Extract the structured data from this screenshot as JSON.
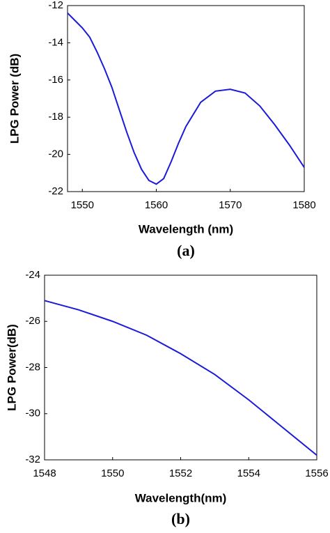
{
  "chart_data": [
    {
      "type": "line",
      "caption": "(a)",
      "x_label": "Wavelength (nm)",
      "y_label": "LPG Power (dB)",
      "xlim": [
        1548,
        1580
      ],
      "xticks": [
        1550,
        1560,
        1570,
        1580
      ],
      "ylim": [
        -22,
        -12
      ],
      "yticks": [
        -22,
        -20,
        -18,
        -16,
        -14,
        -12
      ],
      "series": [
        {
          "color": "#1a1adb",
          "x": [
            1548,
            1549,
            1550,
            1551,
            1552,
            1553,
            1554,
            1555,
            1556,
            1557,
            1558,
            1559,
            1560,
            1561,
            1562,
            1563,
            1564,
            1566,
            1568,
            1570,
            1572,
            1574,
            1576,
            1578,
            1580
          ],
          "values": [
            -12.4,
            -12.8,
            -13.2,
            -13.7,
            -14.5,
            -15.4,
            -16.4,
            -17.6,
            -18.8,
            -19.9,
            -20.8,
            -21.4,
            -21.6,
            -21.3,
            -20.4,
            -19.4,
            -18.5,
            -17.2,
            -16.6,
            -16.5,
            -16.7,
            -17.4,
            -18.4,
            -19.5,
            -20.7
          ]
        }
      ]
    },
    {
      "type": "line",
      "caption": "(b)",
      "x_label": "Wavelength(nm)",
      "y_label": "LPG Power(dB)",
      "xlim": [
        1548,
        1556
      ],
      "xticks": [
        1548,
        1550,
        1552,
        1554,
        1556
      ],
      "ylim": [
        -32,
        -24
      ],
      "yticks": [
        -32,
        -30,
        -28,
        -26,
        -24
      ],
      "series": [
        {
          "color": "#1a1adb",
          "x": [
            1548,
            1549,
            1550,
            1551,
            1552,
            1553,
            1554,
            1555,
            1556
          ],
          "values": [
            -25.1,
            -25.5,
            -26.0,
            -26.6,
            -27.4,
            -28.3,
            -29.4,
            -30.6,
            -31.8
          ]
        }
      ]
    }
  ]
}
